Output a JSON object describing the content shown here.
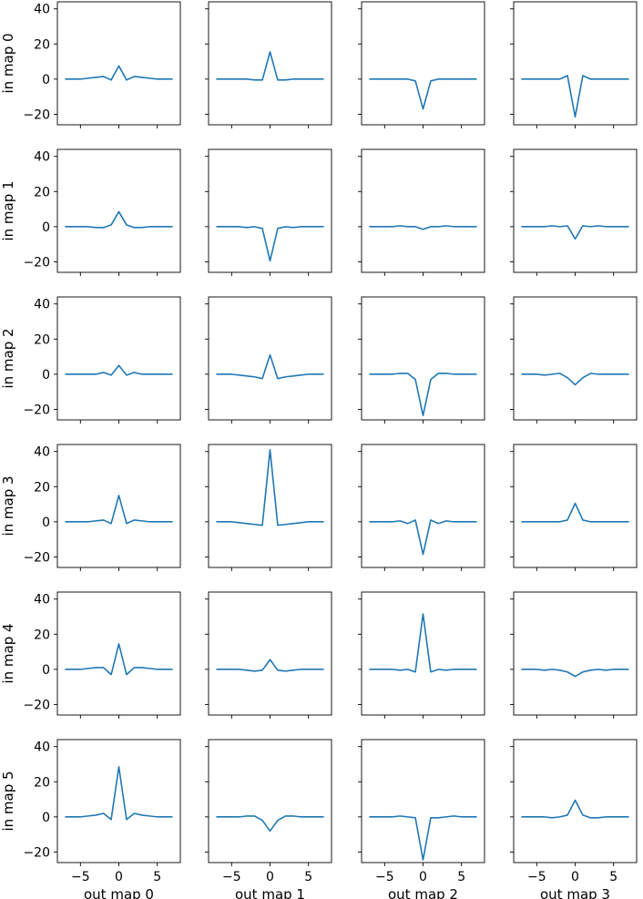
{
  "chart_data": {
    "type": "line",
    "grid": false,
    "row_labels": [
      "in map 0",
      "in map 1",
      "in map 2",
      "in map 3",
      "in map 4",
      "in map 5"
    ],
    "col_labels": [
      "out map 0",
      "out map 1",
      "out map 2",
      "out map 3"
    ],
    "x": [
      -7,
      -6,
      -5,
      -4,
      -3,
      -2,
      -1,
      0,
      1,
      2,
      3,
      4,
      5,
      6,
      7
    ],
    "xlim": [
      -8,
      8
    ],
    "ylim": [
      -26,
      44
    ],
    "x_ticks": [
      -5,
      0,
      5
    ],
    "x_tick_labels": [
      "−5",
      "0",
      "5"
    ],
    "y_ticks": [
      -20,
      0,
      20,
      40
    ],
    "y_tick_labels": [
      "−20",
      "0",
      "20",
      "40"
    ],
    "line_color": "#1f77b4",
    "panels": [
      [
        {
          "row": 0,
          "col": 0,
          "values": [
            0,
            0,
            0,
            0.5,
            1,
            1.5,
            -0.5,
            7.5,
            -0.5,
            1.5,
            1,
            0.5,
            0,
            0,
            0
          ]
        },
        {
          "row": 0,
          "col": 1,
          "values": [
            0,
            0,
            0,
            0,
            0,
            -0.5,
            -0.5,
            15.5,
            -0.5,
            -0.5,
            0,
            0,
            0,
            0,
            0
          ]
        },
        {
          "row": 0,
          "col": 2,
          "values": [
            0,
            0,
            0,
            0,
            0,
            0,
            -1,
            -17,
            -1,
            0,
            0,
            0,
            0,
            0,
            0
          ]
        },
        {
          "row": 0,
          "col": 3,
          "values": [
            0,
            0,
            0,
            0,
            0,
            0,
            2,
            -21.5,
            2,
            0,
            0,
            0,
            0,
            0,
            0
          ]
        }
      ],
      [
        {
          "row": 1,
          "col": 0,
          "values": [
            0,
            0,
            0,
            0,
            -0.5,
            -0.5,
            1,
            8.5,
            1,
            -0.5,
            -0.5,
            0,
            0,
            0,
            0
          ]
        },
        {
          "row": 1,
          "col": 1,
          "values": [
            0,
            0,
            0,
            0,
            -0.5,
            0,
            -1,
            -19.5,
            -1,
            0,
            -0.5,
            0,
            0,
            0,
            0
          ]
        },
        {
          "row": 1,
          "col": 2,
          "values": [
            0,
            0,
            0,
            0,
            0.5,
            0,
            0,
            -1.5,
            0,
            0,
            0.5,
            0,
            0,
            0,
            0
          ]
        },
        {
          "row": 1,
          "col": 3,
          "values": [
            0,
            0,
            0,
            0,
            0.5,
            0,
            0.5,
            -7,
            0.5,
            0,
            0.5,
            0,
            0,
            0,
            0
          ]
        }
      ],
      [
        {
          "row": 2,
          "col": 0,
          "values": [
            0,
            0,
            0,
            0,
            0,
            1,
            -0.5,
            5,
            -0.5,
            1,
            0,
            0,
            0,
            0,
            0
          ]
        },
        {
          "row": 2,
          "col": 1,
          "values": [
            0,
            0,
            0,
            -0.5,
            -1,
            -1.5,
            -2.5,
            11,
            -2.5,
            -1.5,
            -1,
            -0.5,
            0,
            0,
            0
          ]
        },
        {
          "row": 2,
          "col": 2,
          "values": [
            0,
            0,
            0,
            0,
            0.5,
            0.5,
            -3,
            -23.5,
            -3,
            0.5,
            0.5,
            0,
            0,
            0,
            0
          ]
        },
        {
          "row": 2,
          "col": 3,
          "values": [
            0,
            0,
            0,
            -0.5,
            0,
            0.5,
            -2,
            -6,
            -2,
            0.5,
            0,
            0,
            0,
            0,
            0
          ]
        }
      ],
      [
        {
          "row": 3,
          "col": 0,
          "values": [
            0,
            0,
            0,
            0,
            0.5,
            1,
            -1,
            15,
            -1,
            1,
            0.5,
            0,
            0,
            0,
            0
          ]
        },
        {
          "row": 3,
          "col": 1,
          "values": [
            0,
            0,
            0,
            -0.5,
            -1,
            -1.5,
            -2,
            41,
            -2,
            -1.5,
            -1,
            -0.5,
            0,
            0,
            0
          ]
        },
        {
          "row": 3,
          "col": 2,
          "values": [
            0,
            0,
            0,
            0,
            0.5,
            -1,
            1,
            -18.5,
            1,
            -1,
            0.5,
            0,
            0,
            0,
            0
          ]
        },
        {
          "row": 3,
          "col": 3,
          "values": [
            0,
            0,
            0,
            0,
            0,
            0,
            1,
            10.5,
            1,
            0,
            0,
            0,
            0,
            0,
            0
          ]
        }
      ],
      [
        {
          "row": 4,
          "col": 0,
          "values": [
            0,
            0,
            0,
            0.5,
            1,
            1,
            -3,
            14.5,
            -3,
            1,
            1,
            0.5,
            0,
            0,
            0
          ]
        },
        {
          "row": 4,
          "col": 1,
          "values": [
            0,
            0,
            0,
            0,
            -0.5,
            -1,
            -0.5,
            5.5,
            -0.5,
            -1,
            -0.5,
            0,
            0,
            0,
            0
          ]
        },
        {
          "row": 4,
          "col": 2,
          "values": [
            0,
            0,
            0,
            0,
            -0.5,
            0,
            -1.5,
            31.5,
            -1.5,
            0,
            -0.5,
            0,
            0,
            0,
            0
          ]
        },
        {
          "row": 4,
          "col": 3,
          "values": [
            0,
            0,
            0,
            -0.5,
            0,
            -0.5,
            -1.5,
            -4,
            -1.5,
            -0.5,
            0,
            -0.5,
            0,
            0,
            0
          ]
        }
      ],
      [
        {
          "row": 5,
          "col": 0,
          "values": [
            0,
            0,
            0,
            0.5,
            1,
            2,
            -1.5,
            28.5,
            -1.5,
            2,
            1,
            0.5,
            0,
            0,
            0
          ]
        },
        {
          "row": 5,
          "col": 1,
          "values": [
            0,
            0,
            0,
            0,
            0.5,
            0.5,
            -2,
            -8,
            -2,
            0.5,
            0.5,
            0,
            0,
            0,
            0
          ]
        },
        {
          "row": 5,
          "col": 2,
          "values": [
            0,
            0,
            0,
            0,
            0.5,
            0,
            -0.5,
            -24.5,
            -0.5,
            -0.5,
            0,
            0.5,
            0,
            0,
            0
          ]
        },
        {
          "row": 5,
          "col": 3,
          "values": [
            0,
            0,
            0,
            0,
            -0.5,
            0,
            1,
            9.5,
            1,
            -0.5,
            -0.5,
            0,
            0,
            0,
            0
          ]
        }
      ]
    ]
  }
}
